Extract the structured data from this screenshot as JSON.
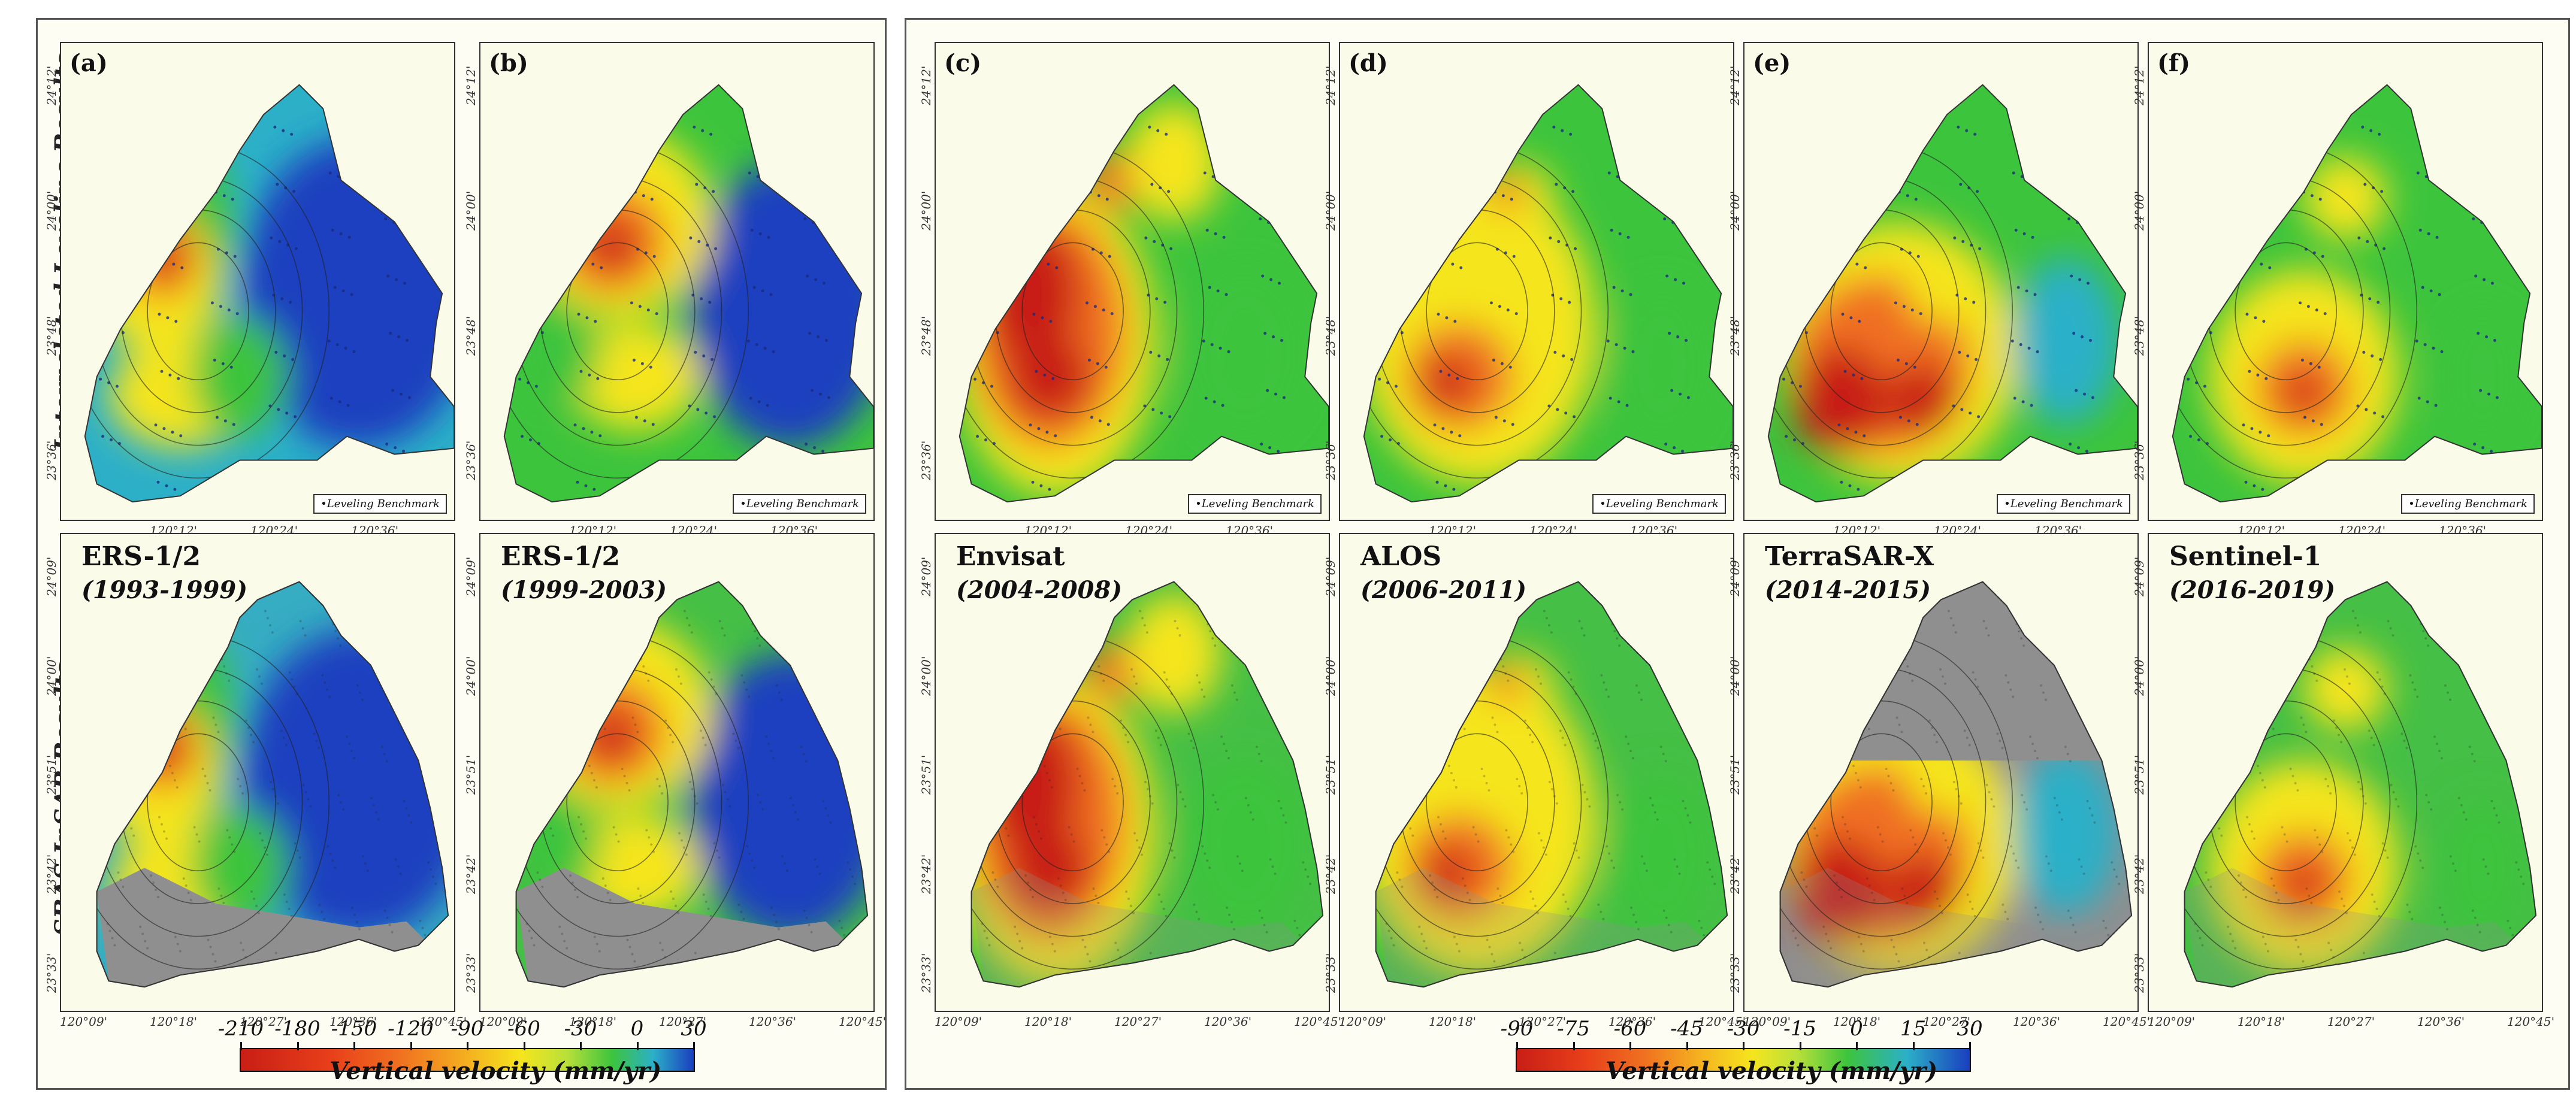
{
  "row_titles": {
    "top": "Interpolated Leveling Results",
    "bottom": "SBAS InSAR Results"
  },
  "top_panels": [
    {
      "letter": "(a)",
      "scheme": "a"
    },
    {
      "letter": "(b)",
      "scheme": "b"
    },
    {
      "letter": "(c)",
      "scheme": "c"
    },
    {
      "letter": "(d)",
      "scheme": "d"
    },
    {
      "letter": "(e)",
      "scheme": "e"
    },
    {
      "letter": "(f)",
      "scheme": "f"
    }
  ],
  "bottom_panels": [
    {
      "name": "ERS-1/2",
      "period": "(1993-1999)",
      "scheme": "a"
    },
    {
      "name": "ERS-1/2",
      "period": "(1999-2003)",
      "scheme": "b"
    },
    {
      "name": "Envisat",
      "period": "(2004-2008)",
      "scheme": "c"
    },
    {
      "name": "ALOS",
      "period": "(2006-2011)",
      "scheme": "d"
    },
    {
      "name": "TerraSAR-X",
      "period": "(2014-2015)",
      "scheme": "e"
    },
    {
      "name": "Sentinel-1",
      "period": "(2016-2019)",
      "scheme": "f"
    }
  ],
  "leveling_legend": "•Leveling Benchmark",
  "top_lon_ticks": [
    "120°12'",
    "120°24'",
    "120°36'"
  ],
  "top_lat_ticks": [
    "24°12'",
    "24°00'",
    "23°48'",
    "23°36'"
  ],
  "bottom_lon_ticks": [
    "120°09'",
    "120°18'",
    "120°27'",
    "120°36'",
    "120°45'"
  ],
  "bottom_lat_ticks": [
    "24°09'",
    "24°00'",
    "23°51'",
    "23°42'",
    "23°33'"
  ],
  "colorbars": [
    {
      "ticks": [
        "-210",
        "-180",
        "-150",
        "-120",
        "-90",
        "-60",
        "-30",
        "0",
        "30"
      ],
      "title": "Vertical velocity (mm/yr)"
    },
    {
      "ticks": [
        "-90",
        "-75",
        "-60",
        "-45",
        "-30",
        "-15",
        "0",
        "15",
        "30"
      ],
      "title": "Vertical velocity (mm/yr)"
    }
  ],
  "colors": {
    "deep_red": "#c81e16",
    "orange": "#f07020",
    "yellow": "#f5e51e",
    "green": "#3dc43d",
    "cyan": "#2cb0c8",
    "blue": "#1a3fbf",
    "hillshade": "#8f8f8f"
  }
}
